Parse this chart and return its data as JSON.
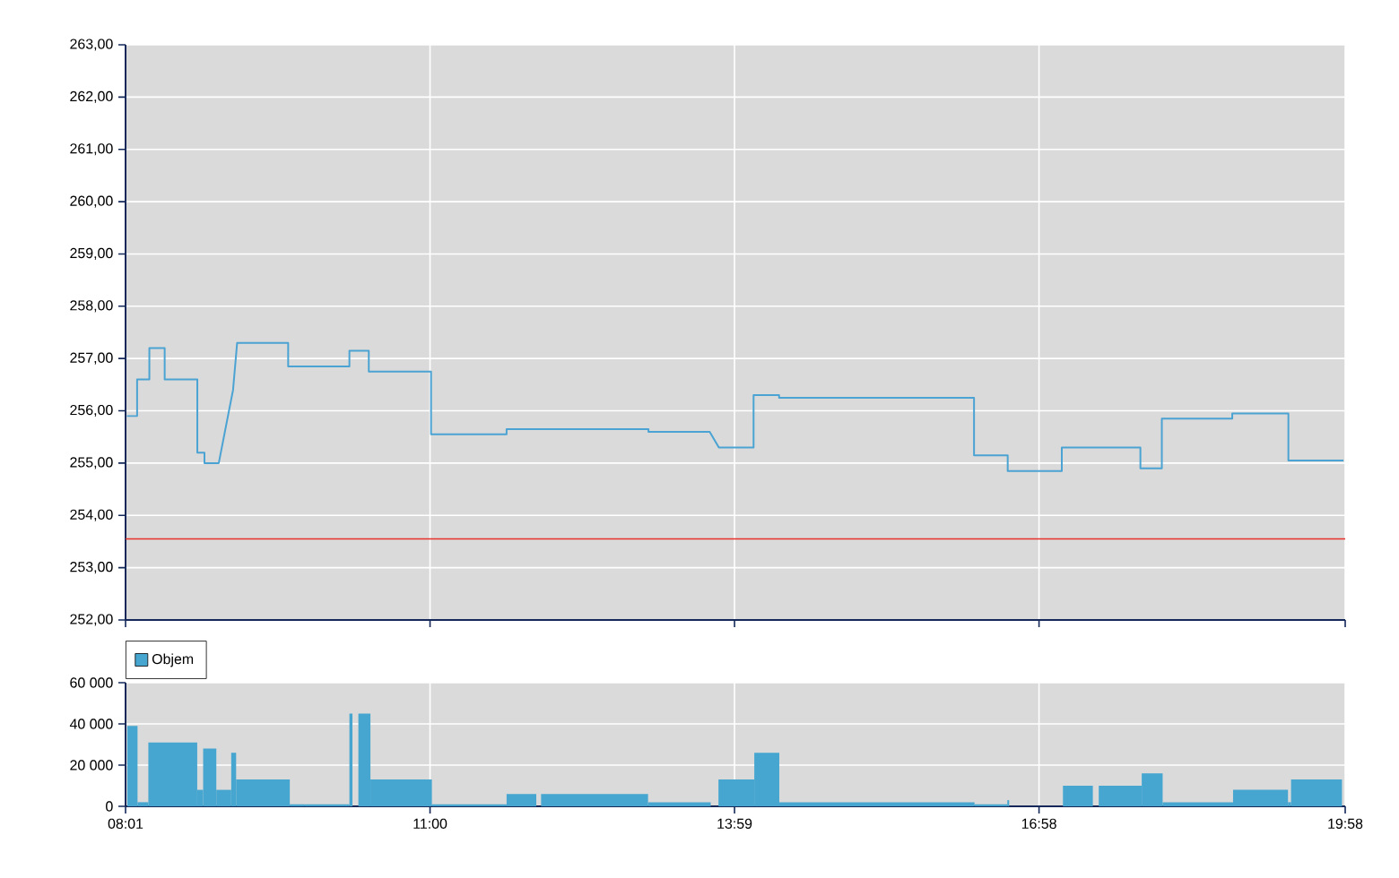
{
  "chart_data": [
    {
      "type": "line",
      "x": [
        8.03,
        8.13,
        8.13,
        8.25,
        8.25,
        8.4,
        8.4,
        8.72,
        8.72,
        8.79,
        8.79,
        8.93,
        9.07,
        9.11,
        9.61,
        9.61,
        10.21,
        10.21,
        10.4,
        10.4,
        11.01,
        11.01,
        11.75,
        11.75,
        13.14,
        13.14,
        13.74,
        13.83,
        14.17,
        14.17,
        14.42,
        14.42,
        16.33,
        16.33,
        16.66,
        16.66,
        17.19,
        17.19,
        17.96,
        17.96,
        18.17,
        18.17,
        18.86,
        18.86,
        19.41,
        19.41,
        19.95
      ],
      "series": [
        {
          "color": "#4aa3d2",
          "values": [
            255.9,
            255.9,
            256.6,
            256.6,
            257.2,
            257.2,
            256.6,
            256.6,
            255.2,
            255.2,
            255.0,
            255.0,
            256.4,
            257.3,
            257.3,
            256.85,
            256.85,
            257.15,
            257.15,
            256.75,
            256.75,
            255.55,
            255.55,
            255.65,
            255.65,
            255.6,
            255.6,
            255.3,
            255.3,
            256.3,
            256.3,
            256.25,
            256.25,
            255.15,
            255.15,
            254.85,
            254.85,
            255.3,
            255.3,
            254.9,
            254.9,
            255.85,
            255.85,
            255.95,
            255.95,
            255.05,
            255.05
          ]
        }
      ],
      "xlim": [
        8.0167,
        19.9667
      ],
      "xticks": [
        {
          "value": 8.0167,
          "label": null
        },
        {
          "value": 11,
          "label": null
        },
        {
          "value": 13.9833,
          "label": null
        },
        {
          "value": 16.9667,
          "label": null
        },
        {
          "value": 19.9667,
          "label": null
        }
      ],
      "ylim": [
        252,
        263
      ],
      "yticks": [
        {
          "value": 252,
          "label": "252,00"
        },
        {
          "value": 253,
          "label": "253,00"
        },
        {
          "value": 254,
          "label": "254,00"
        },
        {
          "value": 255,
          "label": "255,00"
        },
        {
          "value": 256,
          "label": "256,00"
        },
        {
          "value": 257,
          "label": "257,00"
        },
        {
          "value": 258,
          "label": "258,00"
        },
        {
          "value": 259,
          "label": "259,00"
        },
        {
          "value": 260,
          "label": "260,00"
        },
        {
          "value": 261,
          "label": "261,00"
        },
        {
          "value": 262,
          "label": "262,00"
        },
        {
          "value": 263,
          "label": "263,00"
        }
      ],
      "ref_lines": [
        {
          "axis": "y",
          "value": 253.55,
          "color": "#e8302a"
        }
      ],
      "grid": true,
      "tick_labels": "y"
    },
    {
      "type": "histogram",
      "bins": [
        8.034,
        8.134,
        8.24,
        8.719,
        8.777,
        8.906,
        9.052,
        9.1,
        9.626,
        9.772,
        10.21,
        10.24,
        10.298,
        10.416,
        11.018,
        11.75,
        12.041,
        12.088,
        13.136,
        13.75,
        13.826,
        14.177,
        14.422,
        16.335,
        16.656,
        16.674,
        17.201,
        17.494,
        17.552,
        17.973,
        18.178,
        18.868,
        19.406,
        19.436,
        19.935
      ],
      "series": [
        {
          "name": "Objem",
          "color": "#46a6d0",
          "values": [
            39000,
            2000,
            31000,
            8000,
            28000,
            8000,
            26000,
            13000,
            1000,
            1000,
            45000,
            0,
            45000,
            13000,
            1000,
            6000,
            0,
            6000,
            2000,
            0,
            13000,
            26000,
            2000,
            1000,
            3000,
            0,
            10000,
            0,
            10000,
            16000,
            2000,
            8000,
            2000,
            13000
          ]
        }
      ],
      "xlim": [
        8.0167,
        19.9667
      ],
      "xticks": [
        {
          "value": 8.0167,
          "label": "08:01"
        },
        {
          "value": 11,
          "label": "11:00"
        },
        {
          "value": 13.9833,
          "label": "13:59"
        },
        {
          "value": 16.9667,
          "label": "16:58"
        },
        {
          "value": 19.9667,
          "label": "19:58"
        }
      ],
      "ylim": [
        0,
        60000
      ],
      "yticks": [
        {
          "value": 0,
          "label": "0"
        },
        {
          "value": 20000,
          "label": "20 000"
        },
        {
          "value": 40000,
          "label": "40 000"
        },
        {
          "value": 60000,
          "label": "60 000"
        }
      ],
      "grid": true,
      "legend": "top left"
    }
  ]
}
